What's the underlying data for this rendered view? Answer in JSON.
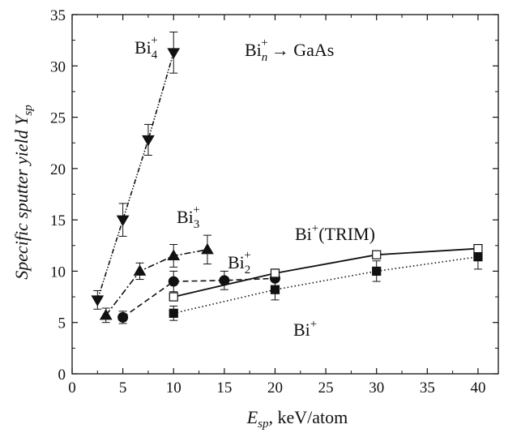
{
  "chart_data": {
    "type": "line",
    "xlabel": {
      "main": "E",
      "sub": "sp",
      "rest": ", keV/atom"
    },
    "ylabel": {
      "main": "Specific sputter yield Y",
      "sub": "sp"
    },
    "xlim": [
      0,
      42
    ],
    "ylim": [
      0,
      35
    ],
    "xticks": [
      0,
      5,
      10,
      15,
      20,
      25,
      30,
      35,
      40
    ],
    "yticks": [
      0,
      5,
      10,
      15,
      20,
      25,
      30,
      35
    ],
    "grid": false,
    "series": [
      {
        "name": "Bi4+",
        "label": {
          "main": "Bi",
          "sub": "4",
          "sup": "+"
        },
        "marker": "triangle-down",
        "filled": true,
        "line": "dash-dot-dot",
        "x": [
          2.5,
          5,
          7.5,
          10
        ],
        "y": [
          7.2,
          15.0,
          22.8,
          31.3
        ],
        "err": [
          0.9,
          1.6,
          1.5,
          2.0
        ]
      },
      {
        "name": "Bi3+",
        "label": {
          "main": "Bi",
          "sub": "3",
          "sup": "+"
        },
        "marker": "triangle-up",
        "filled": true,
        "line": "dash-dot",
        "x": [
          3.33,
          6.67,
          10,
          13.33
        ],
        "y": [
          5.7,
          10.0,
          11.5,
          12.1
        ],
        "err": [
          0.7,
          0.8,
          1.1,
          1.4
        ]
      },
      {
        "name": "Bi2+",
        "label": {
          "main": "Bi",
          "sub": "2",
          "sup": "+"
        },
        "marker": "circle",
        "filled": true,
        "line": "dashed",
        "x": [
          5,
          10,
          15,
          20
        ],
        "y": [
          5.5,
          9.0,
          9.1,
          9.3
        ],
        "err": [
          0.6,
          1.0,
          0.9,
          0.9
        ]
      },
      {
        "name": "Bi+(TRIM)",
        "label": {
          "main": "Bi",
          "sub": "",
          "sup": "+",
          "rest": "(TRIM)"
        },
        "marker": "square",
        "filled": false,
        "line": "solid",
        "x": [
          10,
          20,
          30,
          40
        ],
        "y": [
          7.5,
          9.8,
          11.6,
          12.2
        ],
        "err": [
          0,
          0,
          0,
          0
        ]
      },
      {
        "name": "Bi+",
        "label": {
          "main": "Bi",
          "sub": "",
          "sup": "+"
        },
        "marker": "square",
        "filled": true,
        "line": "dotted",
        "x": [
          10,
          20,
          30,
          40
        ],
        "y": [
          5.9,
          8.2,
          10.0,
          11.4
        ],
        "err": [
          0.7,
          1.0,
          1.0,
          1.2
        ]
      }
    ],
    "annotation": {
      "main": "Bi",
      "sub": "n",
      "sup": "+",
      "rest": "→ GaAs"
    }
  }
}
